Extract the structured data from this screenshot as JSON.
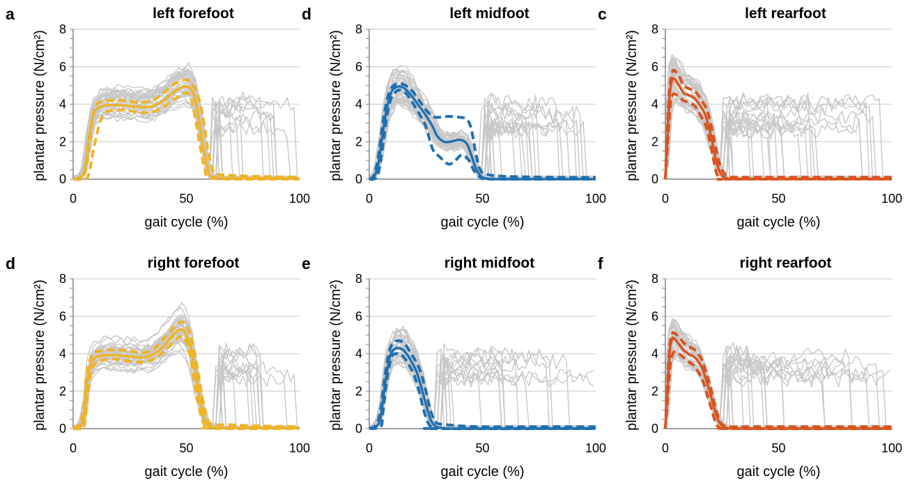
{
  "figure": {
    "panels": [
      {
        "letter": "a",
        "title": "left forefoot"
      },
      {
        "letter": "d",
        "title": "left midfoot"
      },
      {
        "letter": "c",
        "title": "left rearfoot"
      },
      {
        "letter": "d",
        "title": "right forefoot"
      },
      {
        "letter": "e",
        "title": "right midfoot"
      },
      {
        "letter": "f",
        "title": "right rearfoot"
      }
    ]
  },
  "chart_data": [
    {
      "type": "line",
      "panel": "a",
      "title": "left forefoot",
      "xlabel": "gait cycle (%)",
      "ylabel": "plantar pressure (N/cm²)",
      "xlim": [
        0,
        100
      ],
      "ylim": [
        0,
        8
      ],
      "xticks": [
        0,
        50,
        100
      ],
      "yticks": [
        0,
        2,
        4,
        6,
        8
      ],
      "grid": "horizontal",
      "color": "#F0B323",
      "background_traces": "many individual trials in light grey (#c8c8c8)",
      "series": [
        {
          "style": "solid",
          "x": [
            0,
            3,
            5,
            7,
            9,
            12,
            15,
            20,
            25,
            30,
            35,
            40,
            45,
            50,
            53,
            55,
            57,
            59,
            60,
            62,
            70,
            80,
            100
          ],
          "y": [
            0,
            0.1,
            0.5,
            2.2,
            3.5,
            3.85,
            3.95,
            3.95,
            3.9,
            3.85,
            3.9,
            4.2,
            4.7,
            4.95,
            4.6,
            3.6,
            2.0,
            0.8,
            0.3,
            0.1,
            0.05,
            0.05,
            0.05
          ]
        },
        {
          "style": "dashed",
          "x": [
            0,
            4,
            6,
            8,
            10,
            13,
            16,
            20,
            25,
            30,
            35,
            40,
            45,
            50,
            53,
            56,
            58,
            60,
            62,
            64,
            70,
            80,
            100
          ],
          "y": [
            0,
            0.1,
            0.8,
            2.8,
            3.9,
            4.15,
            4.2,
            4.2,
            4.15,
            4.1,
            4.2,
            4.6,
            5.1,
            5.3,
            5.0,
            4.1,
            2.8,
            1.2,
            0.4,
            0.25,
            0.2,
            0.15,
            0.1
          ]
        },
        {
          "style": "dashed",
          "x": [
            0,
            5,
            7,
            9,
            12,
            15,
            20,
            25,
            30,
            35,
            40,
            45,
            50,
            52,
            54,
            56,
            58,
            60,
            70,
            100
          ],
          "y": [
            0,
            0,
            0.3,
            1.6,
            3.1,
            3.6,
            3.7,
            3.65,
            3.55,
            3.6,
            3.85,
            4.3,
            4.6,
            4.3,
            3.2,
            1.8,
            0.6,
            0.1,
            0,
            0
          ]
        }
      ]
    },
    {
      "type": "line",
      "panel": "d",
      "title": "left midfoot",
      "xlabel": "gait cycle (%)",
      "ylabel": "plantar pressure (N/cm²)",
      "xlim": [
        0,
        100
      ],
      "ylim": [
        0,
        8
      ],
      "xticks": [
        0,
        50,
        100
      ],
      "yticks": [
        0,
        2,
        4,
        6,
        8
      ],
      "grid": "horizontal",
      "color": "#1F6FB0",
      "background_traces": "many individual trials in light grey (#c8c8c8)",
      "series": [
        {
          "style": "solid",
          "x": [
            0,
            2,
            4,
            6,
            8,
            10,
            13,
            16,
            19,
            22,
            25,
            28,
            30,
            33,
            36,
            40,
            43,
            45,
            47,
            49,
            51,
            55,
            60,
            70,
            100
          ],
          "y": [
            0,
            0.1,
            0.8,
            2.5,
            3.9,
            4.7,
            4.95,
            4.8,
            4.4,
            3.9,
            3.4,
            2.8,
            2.3,
            2.0,
            2.0,
            2.1,
            1.9,
            1.3,
            0.6,
            0.2,
            0.05,
            0,
            0,
            0,
            0
          ]
        },
        {
          "style": "dashed",
          "x": [
            0,
            2,
            4,
            6,
            8,
            10,
            13,
            16,
            19,
            22,
            25,
            28,
            31,
            35,
            40,
            43,
            45,
            47,
            49,
            52,
            60,
            80,
            100
          ],
          "y": [
            0,
            0.2,
            1.2,
            3.0,
            4.3,
            4.9,
            5.1,
            5.0,
            4.7,
            4.2,
            3.7,
            3.35,
            3.3,
            3.35,
            3.3,
            3.2,
            2.7,
            1.4,
            0.5,
            0.25,
            0.15,
            0.1,
            0.1
          ]
        },
        {
          "style": "dashed",
          "x": [
            0,
            2,
            4,
            6,
            8,
            10,
            13,
            16,
            19,
            22,
            25,
            28,
            31,
            35,
            38,
            41,
            44,
            46,
            48,
            50,
            55,
            100
          ],
          "y": [
            0,
            0,
            0.3,
            1.8,
            3.5,
            4.4,
            4.75,
            4.6,
            4.1,
            3.5,
            2.8,
            1.6,
            1.2,
            0.8,
            1.0,
            1.3,
            1.0,
            0.5,
            0.2,
            0.05,
            0,
            0
          ]
        }
      ]
    },
    {
      "type": "line",
      "panel": "c",
      "title": "left rearfoot",
      "xlabel": "gait cycle (%)",
      "ylabel": "plantar pressure (N/cm²)",
      "xlim": [
        0,
        100
      ],
      "ylim": [
        0,
        8
      ],
      "xticks": [
        0,
        50,
        100
      ],
      "yticks": [
        0,
        2,
        4,
        6,
        8
      ],
      "grid": "horizontal",
      "color": "#D9541E",
      "background_traces": "many individual trials in light grey (#c8c8c8)",
      "series": [
        {
          "style": "solid",
          "x": [
            0,
            1,
            2,
            3,
            4,
            6,
            8,
            10,
            13,
            16,
            18,
            20,
            22,
            24,
            26,
            28,
            30,
            40,
            60,
            100
          ],
          "y": [
            0,
            2.5,
            4.6,
            5.3,
            5.35,
            5.0,
            4.6,
            4.5,
            4.3,
            3.8,
            3.3,
            2.4,
            1.2,
            0.4,
            0.1,
            0.02,
            0,
            0,
            0,
            0
          ]
        },
        {
          "style": "dashed",
          "x": [
            0,
            1,
            2,
            3,
            4,
            6,
            8,
            10,
            13,
            16,
            18,
            20,
            22,
            24,
            26,
            28,
            30,
            40,
            60,
            100
          ],
          "y": [
            0,
            3.0,
            5.0,
            5.7,
            5.8,
            5.5,
            5.0,
            4.85,
            4.7,
            4.2,
            3.8,
            3.0,
            1.8,
            0.8,
            0.3,
            0.15,
            0.1,
            0.1,
            0.1,
            0.1
          ]
        },
        {
          "style": "dashed",
          "x": [
            0,
            2,
            3,
            4,
            6,
            8,
            10,
            13,
            16,
            18,
            20,
            22,
            23,
            25,
            30,
            100
          ],
          "y": [
            0,
            3.7,
            4.4,
            4.55,
            4.4,
            4.2,
            4.1,
            3.9,
            3.3,
            2.8,
            1.8,
            0.6,
            0.2,
            0,
            0,
            0
          ]
        }
      ]
    },
    {
      "type": "line",
      "panel": "d",
      "title": "right forefoot",
      "xlabel": "gait cycle (%)",
      "ylabel": "plantar pressure (N/cm²)",
      "xlim": [
        0,
        100
      ],
      "ylim": [
        0,
        8
      ],
      "xticks": [
        0,
        50,
        100
      ],
      "yticks": [
        0,
        2,
        4,
        6,
        8
      ],
      "grid": "horizontal",
      "color": "#F0B323",
      "background_traces": "many individual trials in light grey (#c8c8c8)",
      "series": [
        {
          "style": "solid",
          "x": [
            0,
            3,
            5,
            6,
            8,
            10,
            13,
            16,
            20,
            25,
            30,
            35,
            40,
            45,
            48,
            50,
            52,
            54,
            56,
            58,
            60,
            64,
            80,
            100
          ],
          "y": [
            0,
            0.1,
            0.8,
            2.4,
            3.5,
            3.8,
            3.9,
            3.92,
            3.92,
            3.85,
            3.8,
            3.95,
            4.4,
            5.1,
            5.3,
            5.0,
            4.3,
            3.0,
            1.6,
            0.5,
            0.15,
            0.05,
            0.05,
            0.05
          ]
        },
        {
          "style": "dashed",
          "x": [
            0,
            3,
            5,
            6,
            8,
            10,
            13,
            16,
            20,
            25,
            30,
            35,
            40,
            45,
            48,
            50,
            52,
            54,
            56,
            58,
            60,
            62,
            64,
            70,
            80,
            100
          ],
          "y": [
            0,
            0.3,
            1.4,
            3.0,
            3.85,
            4.1,
            4.15,
            4.2,
            4.2,
            4.15,
            4.05,
            4.2,
            4.8,
            5.45,
            5.7,
            5.5,
            4.9,
            3.8,
            2.4,
            1.1,
            0.35,
            0.2,
            0.2,
            0.2,
            0.15,
            0.1
          ]
        },
        {
          "style": "dashed",
          "x": [
            0,
            4,
            5,
            6,
            8,
            10,
            13,
            16,
            20,
            25,
            30,
            35,
            40,
            45,
            48,
            50,
            52,
            54,
            56,
            58,
            60,
            100
          ],
          "y": [
            0,
            0,
            0.2,
            1.4,
            3.0,
            3.5,
            3.65,
            3.7,
            3.7,
            3.6,
            3.55,
            3.7,
            4.1,
            4.7,
            4.95,
            4.6,
            3.7,
            2.2,
            0.9,
            0.2,
            0.02,
            0
          ]
        }
      ]
    },
    {
      "type": "line",
      "panel": "e",
      "title": "right midfoot",
      "xlabel": "gait cycle (%)",
      "ylabel": "plantar pressure (N/cm²)",
      "xlim": [
        0,
        100
      ],
      "ylim": [
        0,
        8
      ],
      "xticks": [
        0,
        50,
        100
      ],
      "yticks": [
        0,
        2,
        4,
        6,
        8
      ],
      "grid": "horizontal",
      "color": "#1F6FB0",
      "background_traces": "many individual trials in light grey (#c8c8c8)",
      "series": [
        {
          "style": "solid",
          "x": [
            0,
            3,
            5,
            7,
            9,
            11,
            13,
            15,
            17,
            19,
            21,
            23,
            25,
            27,
            29,
            31,
            35,
            40,
            60,
            100
          ],
          "y": [
            0,
            0.1,
            0.6,
            2.4,
            3.8,
            4.25,
            4.3,
            4.2,
            3.9,
            3.5,
            3.0,
            2.2,
            1.3,
            0.5,
            0.15,
            0.05,
            0,
            0,
            0,
            0
          ]
        },
        {
          "style": "dashed",
          "x": [
            0,
            3,
            5,
            7,
            9,
            11,
            13,
            15,
            17,
            19,
            21,
            23,
            25,
            27,
            29,
            31,
            35,
            40,
            50,
            70,
            90,
            100
          ],
          "y": [
            0,
            0.2,
            1.0,
            2.9,
            4.2,
            4.6,
            4.7,
            4.6,
            4.3,
            3.9,
            3.5,
            2.9,
            2.0,
            1.0,
            0.4,
            0.25,
            0.2,
            0.15,
            0.1,
            0.1,
            0.1,
            0.1
          ]
        },
        {
          "style": "dashed",
          "x": [
            0,
            5,
            6,
            8,
            10,
            12,
            14,
            16,
            18,
            20,
            22,
            24,
            26,
            28,
            30,
            100
          ],
          "y": [
            0,
            0.1,
            0.8,
            2.8,
            3.85,
            4.0,
            3.95,
            3.7,
            3.3,
            2.8,
            2.0,
            1.0,
            0.3,
            0.05,
            0,
            0
          ]
        }
      ]
    },
    {
      "type": "line",
      "panel": "f",
      "title": "right rearfoot",
      "xlabel": "gait cycle (%)",
      "ylabel": "plantar pressure (N/cm²)",
      "xlim": [
        0,
        100
      ],
      "ylim": [
        0,
        8
      ],
      "xticks": [
        0,
        50,
        100
      ],
      "yticks": [
        0,
        2,
        4,
        6,
        8
      ],
      "grid": "horizontal",
      "color": "#D9541E",
      "background_traces": "many individual trials in light grey (#c8c8c8)",
      "series": [
        {
          "style": "solid",
          "x": [
            0,
            1,
            2,
            3,
            4,
            6,
            8,
            10,
            13,
            16,
            18,
            20,
            22,
            24,
            26,
            28,
            30,
            40,
            60,
            100
          ],
          "y": [
            0,
            2.2,
            4.2,
            4.8,
            4.8,
            4.5,
            4.2,
            4.0,
            3.8,
            3.3,
            2.6,
            1.8,
            0.9,
            0.3,
            0.08,
            0.02,
            0,
            0,
            0,
            0
          ]
        },
        {
          "style": "dashed",
          "x": [
            0,
            1,
            2,
            3,
            4,
            6,
            8,
            10,
            13,
            16,
            18,
            20,
            22,
            24,
            26,
            28,
            30,
            40,
            60,
            100
          ],
          "y": [
            0,
            2.6,
            4.5,
            5.05,
            5.1,
            4.9,
            4.6,
            4.4,
            4.2,
            3.7,
            3.0,
            2.2,
            1.2,
            0.4,
            0.15,
            0.1,
            0.1,
            0.1,
            0.1,
            0.1
          ]
        },
        {
          "style": "dashed",
          "x": [
            0,
            2,
            3,
            4,
            6,
            8,
            10,
            13,
            16,
            18,
            20,
            22,
            24,
            30,
            100
          ],
          "y": [
            0,
            3.2,
            3.9,
            4.1,
            4.0,
            3.8,
            3.6,
            3.3,
            2.7,
            2.0,
            1.2,
            0.4,
            0.05,
            0,
            0
          ]
        }
      ]
    }
  ]
}
